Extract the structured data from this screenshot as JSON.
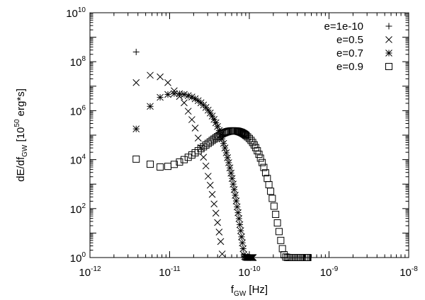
{
  "chart_data": {
    "type": "scatter",
    "title": "",
    "xlabel": {
      "base": "f",
      "sub": "GW",
      "rest": " [Hz]"
    },
    "ylabel": {
      "p1": "dE/df",
      "sub": "GW",
      "p2": " [10",
      "sup": "50",
      "p3": " erg*s]"
    },
    "xscale": "log",
    "yscale": "log",
    "xlim": [
      1e-12,
      1e-08
    ],
    "ylim": [
      1,
      10000000000.0
    ],
    "xticks": [
      {
        "base": "10",
        "exp": "-12"
      },
      {
        "base": "10",
        "exp": "-11"
      },
      {
        "base": "10",
        "exp": "-10"
      },
      {
        "base": "10",
        "exp": "-9"
      },
      {
        "base": "10",
        "exp": "-8"
      }
    ],
    "yticks": [
      {
        "base": "10",
        "exp": "0"
      },
      {
        "base": "10",
        "exp": "2"
      },
      {
        "base": "10",
        "exp": "4"
      },
      {
        "base": "10",
        "exp": "6"
      },
      {
        "base": "10",
        "exp": "8"
      },
      {
        "base": "10",
        "exp": "10"
      }
    ],
    "grid": false,
    "legend_position": "top-right",
    "series": [
      {
        "name": "e=1e-10",
        "marker": "plus",
        "x": [
          3.8e-12
        ],
        "y": [
          250000000.0
        ]
      },
      {
        "name": "e=0.5",
        "marker": "cross",
        "x": [
          3.8e-12,
          5.7e-12,
          7.6e-12,
          9.5e-12,
          1.14e-11,
          1.33e-11,
          1.52e-11,
          1.71e-11,
          1.9e-11,
          2.09e-11,
          2.28e-11,
          2.47e-11,
          2.66e-11,
          2.85e-11,
          3.04e-11,
          3.23e-11,
          3.42e-11,
          3.61e-11,
          3.8e-11,
          3.99e-11,
          4.18e-11,
          4.37e-11,
          4.56e-11
        ],
        "y": [
          14000000.0,
          28000000.0,
          24000000.0,
          14000000.0,
          6500000.0,
          3800000.0,
          2100000.0,
          950000.0,
          430000.0,
          195000.0,
          76000.0,
          31000.0,
          12500.0,
          5500,
          2100,
          900,
          380,
          155,
          65,
          27,
          11,
          4.5,
          1.4
        ]
      },
      {
        "name": "e=0.7",
        "marker": "star",
        "x": [
          3.8e-12,
          5.7e-12,
          7.6e-12,
          9.5e-12,
          1.14e-11,
          1.33e-11,
          1.52e-11,
          1.71e-11,
          1.9e-11,
          2.09e-11,
          2.28e-11,
          2.47e-11,
          2.66e-11,
          2.85e-11,
          3.04e-11,
          3.23e-11,
          3.42e-11,
          3.61e-11,
          3.8e-11,
          3.99e-11,
          4.18e-11,
          4.37e-11,
          4.56e-11,
          4.75e-11,
          4.94e-11,
          5.13e-11,
          5.32e-11,
          5.51e-11,
          5.7e-11,
          5.89e-11,
          6.08e-11,
          6.27e-11,
          6.46e-11,
          6.65e-11,
          6.84e-11,
          7.03e-11,
          7.22e-11,
          7.41e-11,
          7.6e-11,
          7.79e-11,
          7.98e-11,
          8.17e-11,
          8.36e-11,
          8.55e-11,
          8.74e-11,
          8.93e-11,
          9.12e-11,
          9.31e-11,
          9.5e-11,
          9.69e-11,
          9.88e-11,
          1.007e-10,
          1.026e-10,
          1.045e-10,
          1.064e-10,
          1.083e-10,
          1.102e-10,
          1.121e-10
        ],
        "y": [
          180000.0,
          1500000.0,
          3500000.0,
          4600000.0,
          5000000.0,
          4900000.0,
          4600000.0,
          4100000.0,
          3600000.0,
          3050000.0,
          2550000.0,
          2100000.0,
          1700000.0,
          1350000.0,
          1050000.0,
          800000.0,
          600000.0,
          440000.0,
          320000.0,
          225000.0,
          155000.0,
          105000.0,
          70000.0,
          46000.0,
          30000.0,
          19000.0,
          12000.0,
          7500,
          4600,
          2800,
          1700,
          1000,
          600,
          350,
          205,
          118,
          68,
          39,
          22,
          12.5,
          7,
          4,
          2.3,
          1.3,
          1.1,
          1.05,
          1.02,
          1.01,
          1.0,
          1.0,
          1.0,
          1.0,
          1.0,
          1.0,
          1.0,
          1.0,
          1.0,
          1.0
        ]
      },
      {
        "name": "e=0.9",
        "marker": "square",
        "x": [
          3.8e-12,
          5.7e-12,
          7.6e-12,
          9.5e-12,
          1.14e-11,
          1.33e-11,
          1.52e-11,
          1.71e-11,
          1.9e-11,
          2.09e-11,
          2.28e-11,
          2.47e-11,
          2.66e-11,
          2.85e-11,
          3.04e-11,
          3.23e-11,
          3.42e-11,
          3.61e-11,
          3.8e-11,
          3.99e-11,
          4.18e-11,
          4.37e-11,
          4.56e-11,
          4.75e-11,
          4.94e-11,
          5.13e-11,
          5.32e-11,
          5.51e-11,
          5.7e-11,
          5.89e-11,
          6.08e-11,
          6.27e-11,
          6.46e-11,
          6.65e-11,
          6.84e-11,
          7.03e-11,
          7.22e-11,
          7.41e-11,
          7.6e-11,
          7.79e-11,
          7.98e-11,
          8.17e-11,
          8.36e-11,
          8.55e-11,
          8.74e-11,
          8.93e-11,
          9.12e-11,
          9.5e-11,
          1e-10,
          1.05e-10,
          1.1e-10,
          1.15e-10,
          1.2e-10,
          1.26e-10,
          1.32e-10,
          1.38e-10,
          1.45e-10,
          1.52e-10,
          1.6e-10,
          1.68e-10,
          1.76e-10,
          1.85e-10,
          1.94e-10,
          2.04e-10,
          2.14e-10,
          2.25e-10,
          2.36e-10,
          2.48e-10,
          2.6e-10,
          2.73e-10,
          2.87e-10,
          3.01e-10,
          3.16e-10,
          3.32e-10,
          3.48e-10,
          3.66e-10,
          3.84e-10,
          4.03e-10,
          4.23e-10,
          4.44e-10,
          4.66e-10,
          4.9e-10,
          5.1e-10,
          5.25e-10,
          5.35e-10,
          5.42e-10
        ],
        "y": [
          10500.0,
          6500.0,
          5000.0,
          5300.0,
          6400.0,
          8000.0,
          10000.0,
          12500.0,
          15500.0,
          19000.0,
          23000.0,
          28000.0,
          33500.0,
          39500.0,
          46000.0,
          53000.0,
          61000.0,
          69000.0,
          78000.0,
          87000.0,
          96000.0,
          105000.0,
          113000.0,
          121000.0,
          128000.0,
          134000.0,
          139000.0,
          143000.0,
          146000.0,
          148000.0,
          150000.0,
          150000.0,
          150000.0,
          149000.0,
          148000.0,
          146000.0,
          143000.0,
          140000.0,
          136000.0,
          132000.0,
          128000.0,
          123000.0,
          118000.0,
          113000.0,
          108000.0,
          102000.0,
          96000.0,
          85000.0,
          73000.0,
          61000.0,
          50000.0,
          40000.0,
          31000.0,
          23000.0,
          16500.0,
          11500.0,
          7600.0,
          4800.0,
          2900.0,
          1700.0,
          950,
          510,
          260,
          125,
          58,
          26,
          11.5,
          5,
          2.3,
          1.3,
          1.05,
          1.01,
          1.0,
          1.0,
          1.0,
          1.0,
          1.0,
          1.0,
          1.0,
          1.0,
          1.0,
          1.0,
          1.0,
          1.0,
          1.0,
          1.0
        ]
      }
    ]
  }
}
